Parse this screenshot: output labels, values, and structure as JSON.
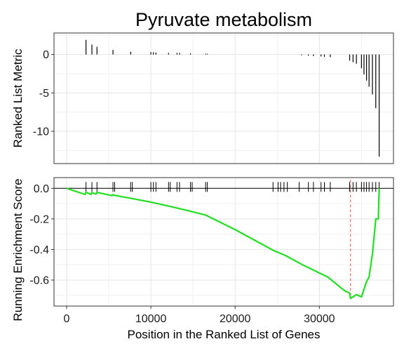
{
  "chart_data": {
    "type": "line",
    "title": "Pyruvate metabolism",
    "xlabel": "Position in the Ranked List of Genes",
    "xlim": [
      -1500,
      38800
    ],
    "x_ticks": [
      {
        "value": 0,
        "label": "0"
      },
      {
        "value": 10000,
        "label": "10000"
      },
      {
        "value": 20000,
        "label": "20000"
      },
      {
        "value": 30000,
        "label": "30000"
      }
    ],
    "grid": true,
    "panels": [
      {
        "name": "ranked-metric",
        "type": "bar",
        "ylabel": "Ranked List Metric",
        "ylim": [
          -14.2,
          2.8
        ],
        "y_ticks": [
          {
            "value": 0,
            "label": "0"
          },
          {
            "value": -5,
            "label": "-5"
          },
          {
            "value": -10,
            "label": "-10"
          }
        ],
        "points": [
          {
            "x": 2300,
            "y": 1.9
          },
          {
            "x": 3000,
            "y": 1.3
          },
          {
            "x": 3600,
            "y": 1.0
          },
          {
            "x": 5500,
            "y": 0.6
          },
          {
            "x": 7600,
            "y": 0.35
          },
          {
            "x": 10000,
            "y": 0.3
          },
          {
            "x": 10300,
            "y": 0.3
          },
          {
            "x": 10600,
            "y": 0.25
          },
          {
            "x": 12100,
            "y": 0.2
          },
          {
            "x": 13100,
            "y": 0.2
          },
          {
            "x": 13400,
            "y": 0.2
          },
          {
            "x": 14700,
            "y": 0.15
          },
          {
            "x": 16500,
            "y": 0.1
          },
          {
            "x": 16700,
            "y": 0.1
          },
          {
            "x": 27900,
            "y": -0.1
          },
          {
            "x": 28700,
            "y": -0.15
          },
          {
            "x": 29300,
            "y": -0.2
          },
          {
            "x": 30200,
            "y": -0.25
          },
          {
            "x": 30600,
            "y": -0.3
          },
          {
            "x": 31300,
            "y": -0.35
          },
          {
            "x": 33600,
            "y": -0.8
          },
          {
            "x": 34000,
            "y": -1.0
          },
          {
            "x": 34400,
            "y": -1.2
          },
          {
            "x": 35000,
            "y": -1.8
          },
          {
            "x": 35300,
            "y": -2.6
          },
          {
            "x": 35600,
            "y": -3.4
          },
          {
            "x": 35900,
            "y": -4.2
          },
          {
            "x": 36300,
            "y": -5.2
          },
          {
            "x": 36700,
            "y": -7.0
          },
          {
            "x": 37100,
            "y": -13.3
          }
        ]
      },
      {
        "name": "running-enrichment-score",
        "type": "line",
        "ylabel": "Running Enrichment Score",
        "ylim": [
          -0.77,
          0.07
        ],
        "y_ticks": [
          {
            "value": 0,
            "label": "0.0"
          },
          {
            "value": -0.2,
            "label": "-0.2"
          },
          {
            "value": -0.4,
            "label": "-0.4"
          },
          {
            "value": -0.6,
            "label": "-0.6"
          }
        ],
        "line_color": "#1fe01f",
        "peak_marker_x": 33700,
        "peak_marker_color": "#d9534f",
        "gene_hits_x": [
          2300,
          3000,
          3600,
          5500,
          5700,
          7600,
          7800,
          10000,
          10300,
          10600,
          12100,
          12300,
          13100,
          13400,
          14700,
          14900,
          16500,
          16700,
          24500,
          25100,
          25400,
          25800,
          26200,
          27600,
          28700,
          29300,
          30200,
          30600,
          31300,
          33600,
          34000,
          34400,
          35000,
          35300,
          35600,
          35900,
          36300,
          36700,
          37100
        ],
        "es_points": [
          {
            "x": 0,
            "y": 0.0
          },
          {
            "x": 2200,
            "y": -0.04
          },
          {
            "x": 2300,
            "y": -0.025
          },
          {
            "x": 2900,
            "y": -0.04
          },
          {
            "x": 3000,
            "y": -0.028
          },
          {
            "x": 3500,
            "y": -0.038
          },
          {
            "x": 3600,
            "y": -0.027
          },
          {
            "x": 5400,
            "y": -0.048
          },
          {
            "x": 5500,
            "y": -0.042
          },
          {
            "x": 5700,
            "y": -0.046
          },
          {
            "x": 7600,
            "y": -0.065
          },
          {
            "x": 10000,
            "y": -0.09
          },
          {
            "x": 12000,
            "y": -0.115
          },
          {
            "x": 14700,
            "y": -0.15
          },
          {
            "x": 16500,
            "y": -0.175
          },
          {
            "x": 20000,
            "y": -0.27
          },
          {
            "x": 24000,
            "y": -0.39
          },
          {
            "x": 24500,
            "y": -0.405
          },
          {
            "x": 26000,
            "y": -0.44
          },
          {
            "x": 28000,
            "y": -0.5
          },
          {
            "x": 31000,
            "y": -0.58
          },
          {
            "x": 33000,
            "y": -0.67
          },
          {
            "x": 33600,
            "y": -0.685
          },
          {
            "x": 33700,
            "y": -0.72
          },
          {
            "x": 34000,
            "y": -0.71
          },
          {
            "x": 34400,
            "y": -0.695
          },
          {
            "x": 35000,
            "y": -0.71
          },
          {
            "x": 35300,
            "y": -0.66
          },
          {
            "x": 35600,
            "y": -0.61
          },
          {
            "x": 35900,
            "y": -0.58
          },
          {
            "x": 36300,
            "y": -0.43
          },
          {
            "x": 36700,
            "y": -0.2
          },
          {
            "x": 37000,
            "y": -0.2
          },
          {
            "x": 37100,
            "y": 0.0
          }
        ]
      }
    ]
  }
}
